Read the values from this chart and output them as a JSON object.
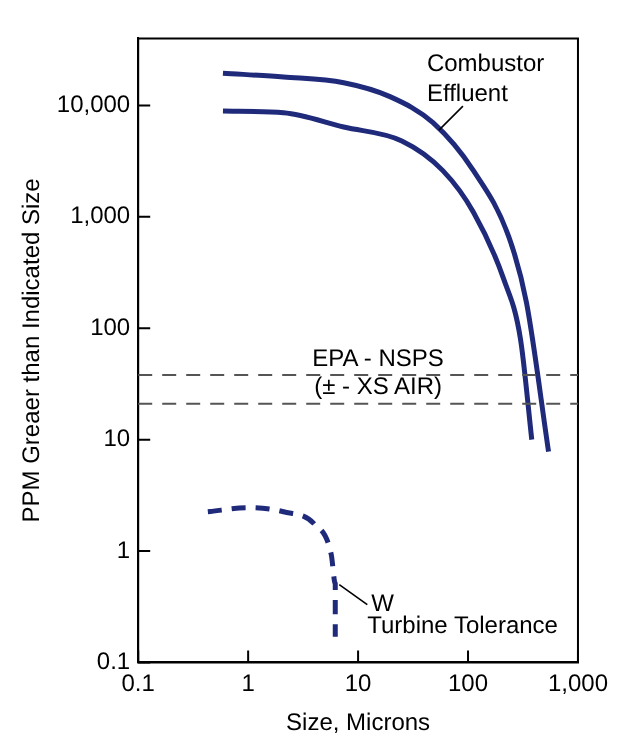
{
  "chart_data": {
    "type": "line",
    "xlabel": "Size, Microns",
    "ylabel": "PPM Greaer than Indicated Size",
    "log": "xy",
    "legend": false,
    "grid": false,
    "marker": "none",
    "xlim": [
      0.1,
      1000
    ],
    "xticks": [
      0.1,
      1,
      10,
      100,
      {
        "value": 1000,
        "label": "1,000"
      }
    ],
    "ylim": [
      0.1,
      40000
    ],
    "yticks": [
      0.1,
      1,
      10,
      100,
      {
        "value": 1000,
        "label": "1,000"
      },
      {
        "value": 10000,
        "label": "10,000"
      }
    ],
    "series": [
      {
        "color": "#1f2a7a",
        "line_style": "solid",
        "x": [
          0.59,
          2.1,
          7.4,
          19.5,
          48,
          112,
          235,
          340,
          540
        ],
        "values": [
          19500,
          18000,
          16000,
          12000,
          7000,
          2600,
          660,
          170,
          7.8
        ]
      },
      {
        "color": "#1f2a7a",
        "line_style": "solid",
        "x": [
          0.59,
          2.1,
          7.4,
          25,
          59,
          112,
          210,
          300,
          380
        ],
        "values": [
          8900,
          8600,
          6400,
          4800,
          2600,
          1100,
          280,
          80,
          10
        ]
      },
      {
        "color": "#1f2a7a",
        "line_style": "dashed",
        "x": [
          0.43,
          1,
          2.1,
          4,
          5.7,
          6.2,
          6.2
        ],
        "values": [
          2.25,
          2.45,
          2.25,
          1.75,
          0.93,
          0.51,
          0.17
        ]
      }
    ],
    "ref_lines": [
      {
        "axis": "y",
        "value": 38,
        "label": "EPA - NSPS",
        "color": "#555555",
        "line_style": "dashed"
      },
      {
        "axis": "y",
        "value": 21,
        "label": "(± - XS AIR)",
        "color": "#555555",
        "line_style": "dashed"
      }
    ],
    "annotations": [
      {
        "text": "Combustor Effluent",
        "x": 50,
        "y": 6000
      },
      {
        "text": "W",
        "x": 6.2,
        "y": 0.5
      },
      "Turbine Tolerance"
    ]
  }
}
